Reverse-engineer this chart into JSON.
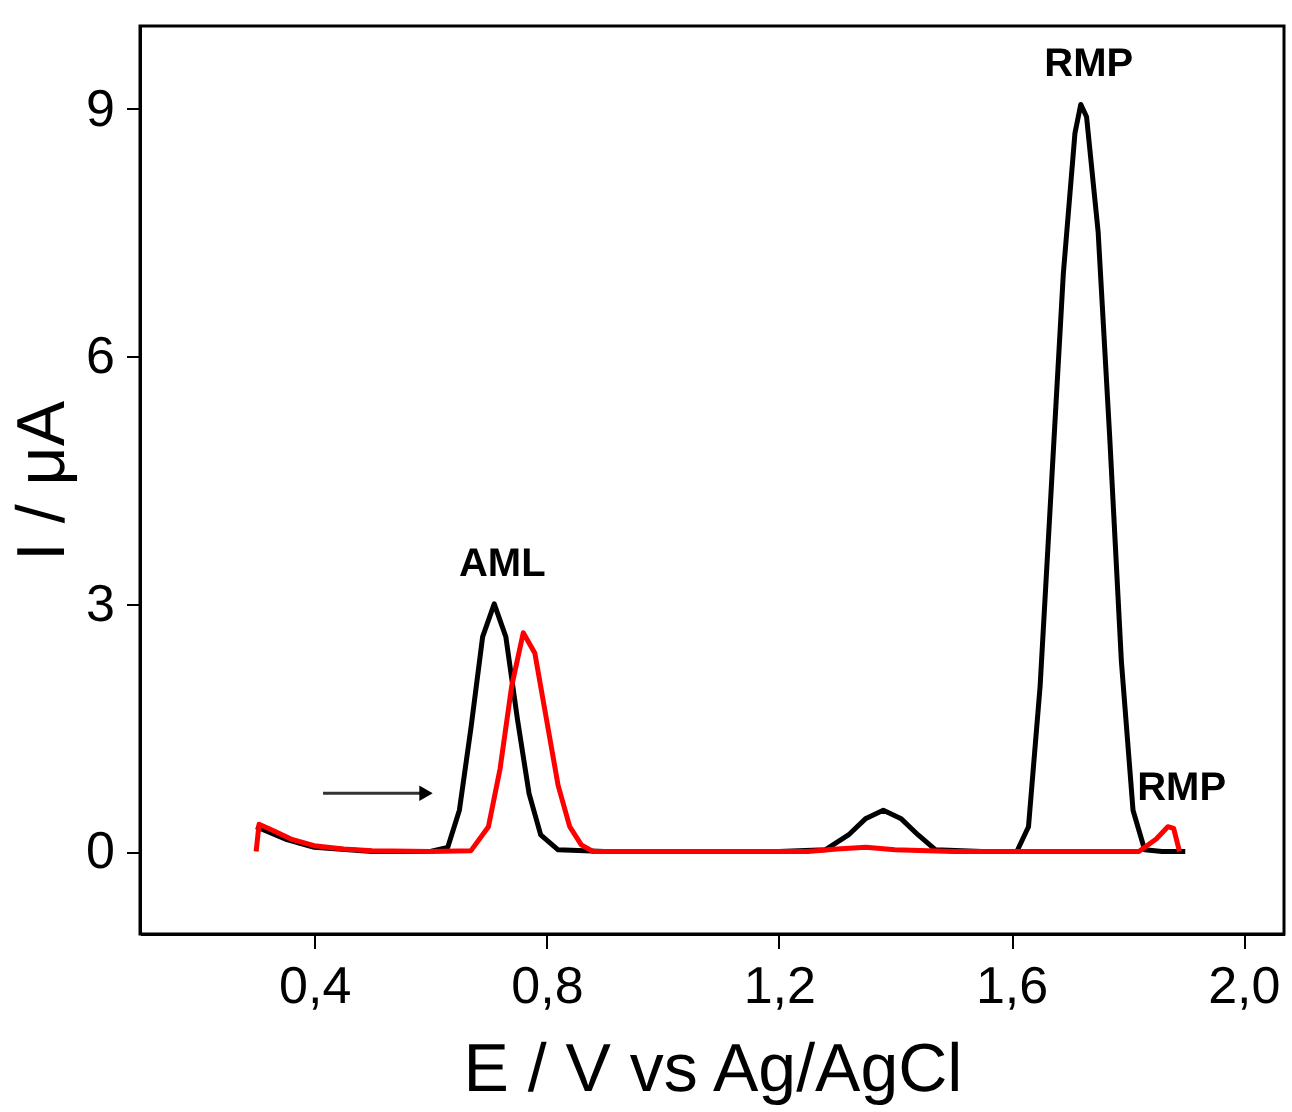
{
  "chart_data": {
    "type": "line",
    "xlabel": "E / V vs Ag/AgCl",
    "ylabel": "I / μA",
    "xlim": [
      0.1,
      2.07
    ],
    "ylim": [
      -1,
      10
    ],
    "xticks": [
      {
        "value": 0.4,
        "label": "0,4"
      },
      {
        "value": 0.8,
        "label": "0,8"
      },
      {
        "value": 1.2,
        "label": "1,2"
      },
      {
        "value": 1.6,
        "label": "1,6"
      },
      {
        "value": 2.0,
        "label": "2,0"
      }
    ],
    "yticks": [
      0,
      3,
      6,
      9
    ],
    "grid": false,
    "marker": "none",
    "line_style": "solid",
    "series": [
      {
        "color": "#000000",
        "x": [
          0.3,
          0.35,
          0.4,
          0.5,
          0.6,
          0.63,
          0.65,
          0.67,
          0.69,
          0.71,
          0.73,
          0.75,
          0.77,
          0.79,
          0.82,
          0.9,
          1.0,
          1.2,
          1.28,
          1.32,
          1.35,
          1.38,
          1.41,
          1.44,
          1.47,
          1.55,
          1.61,
          1.63,
          1.65,
          1.67,
          1.69,
          1.71,
          1.72,
          1.73,
          1.75,
          1.77,
          1.79,
          1.81,
          1.83,
          1.86,
          1.9
        ],
        "values": [
          0.3,
          0.15,
          0.05,
          0,
          0,
          0.05,
          0.5,
          1.5,
          2.6,
          3.0,
          2.6,
          1.6,
          0.7,
          0.2,
          0.02,
          0,
          0,
          0,
          0.02,
          0.2,
          0.4,
          0.5,
          0.4,
          0.2,
          0.02,
          0,
          0,
          0.3,
          2.0,
          4.5,
          7.0,
          8.7,
          9.05,
          8.9,
          7.5,
          5.0,
          2.3,
          0.5,
          0.02,
          0,
          0
        ]
      },
      {
        "color": "#ff0000",
        "x": [
          0.3,
          0.305,
          0.33,
          0.36,
          0.4,
          0.45,
          0.5,
          0.6,
          0.67,
          0.7,
          0.72,
          0.74,
          0.76,
          0.78,
          0.8,
          0.82,
          0.84,
          0.86,
          0.88,
          1.0,
          1.25,
          1.3,
          1.35,
          1.4,
          1.5,
          1.7,
          1.82,
          1.85,
          1.87,
          1.88,
          1.89
        ],
        "values": [
          0,
          0.33,
          0.25,
          0.15,
          0.07,
          0.03,
          0.01,
          0,
          0.01,
          0.3,
          1.0,
          2.0,
          2.65,
          2.4,
          1.6,
          0.8,
          0.3,
          0.08,
          0,
          0,
          0,
          0.03,
          0.05,
          0.02,
          0,
          0,
          0,
          0.15,
          0.3,
          0.28,
          0
        ]
      }
    ],
    "annotations": [
      {
        "text": "AML",
        "x": 0.71,
        "y": 3.0
      },
      {
        "text": "RMP",
        "x": 1.72,
        "y": 9.05
      },
      {
        "text": "RMP",
        "x": 1.88,
        "y": 0.28
      }
    ]
  }
}
